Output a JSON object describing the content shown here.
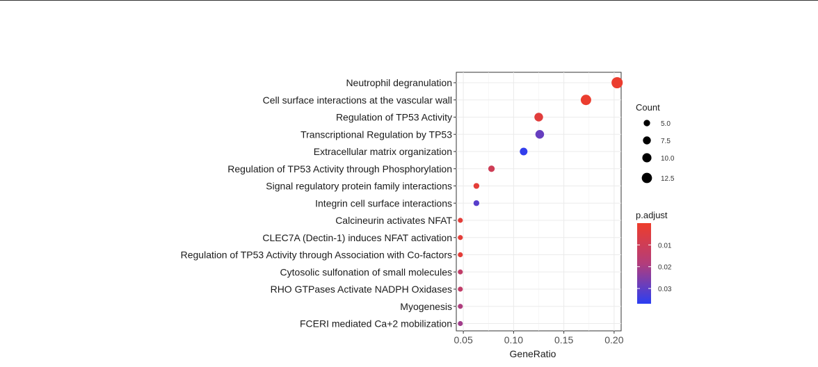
{
  "chart_data": {
    "type": "scatter",
    "xlabel": "GeneRatio",
    "ylabel": "",
    "title": "",
    "xlim": [
      0.043,
      0.207
    ],
    "xticks": [
      0.05,
      0.1,
      0.15,
      0.2
    ],
    "xtick_labels": [
      "0.05",
      "0.10",
      "0.15",
      "0.20"
    ],
    "grid": true,
    "legend_placement": "right",
    "categories": [
      "Neutrophil degranulation",
      "Cell surface interactions at the vascular wall",
      "Regulation of TP53 Activity",
      "Transcriptional Regulation by TP53",
      "Extracellular matrix organization",
      "Regulation of TP53 Activity through Phosphorylation",
      "Signal regulatory protein family interactions",
      "Integrin cell surface interactions",
      "Calcineurin activates NFAT",
      "CLEC7A (Dectin-1) induces NFAT activation",
      "Regulation of TP53 Activity through Association with Co-factors",
      "Cytosolic sulfonation of small molecules",
      "RHO GTPases Activate NADPH Oxidases",
      "Myogenesis",
      "FCERI mediated Ca+2 mobilization"
    ],
    "points": [
      {
        "gene_ratio": 0.203,
        "count": 15,
        "p_adjust": 0.001
      },
      {
        "gene_ratio": 0.172,
        "count": 13,
        "p_adjust": 0.001
      },
      {
        "gene_ratio": 0.125,
        "count": 9,
        "p_adjust": 0.004
      },
      {
        "gene_ratio": 0.126,
        "count": 9,
        "p_adjust": 0.029
      },
      {
        "gene_ratio": 0.11,
        "count": 7,
        "p_adjust": 0.036
      },
      {
        "gene_ratio": 0.078,
        "count": 5,
        "p_adjust": 0.01
      },
      {
        "gene_ratio": 0.063,
        "count": 4,
        "p_adjust": 0.003
      },
      {
        "gene_ratio": 0.063,
        "count": 4,
        "p_adjust": 0.031
      },
      {
        "gene_ratio": 0.047,
        "count": 3,
        "p_adjust": 0.003
      },
      {
        "gene_ratio": 0.047,
        "count": 3,
        "p_adjust": 0.003
      },
      {
        "gene_ratio": 0.047,
        "count": 3,
        "p_adjust": 0.003
      },
      {
        "gene_ratio": 0.047,
        "count": 3,
        "p_adjust": 0.014
      },
      {
        "gene_ratio": 0.047,
        "count": 3,
        "p_adjust": 0.014
      },
      {
        "gene_ratio": 0.047,
        "count": 3,
        "p_adjust": 0.019
      },
      {
        "gene_ratio": 0.047,
        "count": 3,
        "p_adjust": 0.021
      }
    ],
    "size_legend": {
      "title": "Count",
      "entries": [
        {
          "label": "5.0",
          "value": 5.0
        },
        {
          "label": "7.5",
          "value": 7.5
        },
        {
          "label": "10.0",
          "value": 10.0
        },
        {
          "label": "12.5",
          "value": 12.5
        }
      ]
    },
    "color_legend": {
      "title": "p.adjust",
      "range": [
        0.0,
        0.037
      ],
      "ticks": [
        {
          "label": "0.01",
          "value": 0.01
        },
        {
          "label": "0.02",
          "value": 0.02
        },
        {
          "label": "0.03",
          "value": 0.03
        }
      ],
      "low_color": "#ee3d2b",
      "mid_color": "#b33d7b",
      "high_color": "#2b3ef2"
    }
  }
}
